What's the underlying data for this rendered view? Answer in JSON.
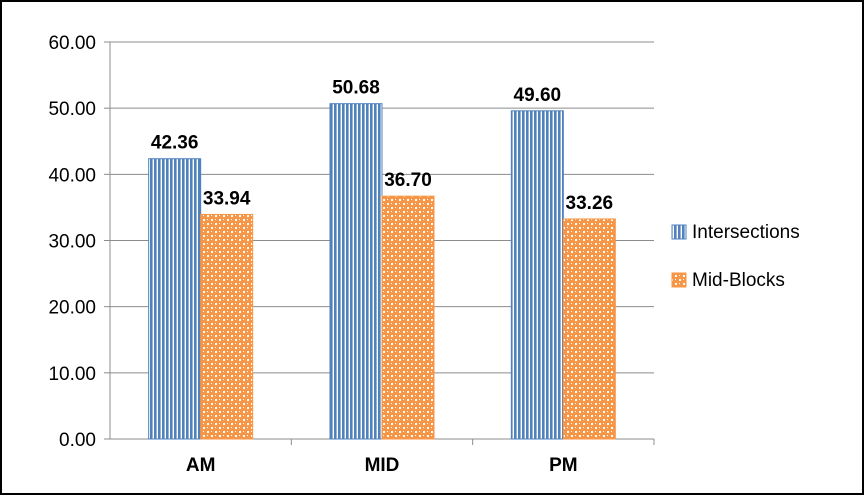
{
  "chart_data": {
    "type": "bar",
    "categories": [
      "AM",
      "MID",
      "PM"
    ],
    "series": [
      {
        "name": "Intersections",
        "values": [
          42.36,
          50.68,
          49.6
        ],
        "labels": [
          "42.36",
          "50.68",
          "49.60"
        ],
        "color": "#4f81bd",
        "pattern": "vertical-stripes"
      },
      {
        "name": "Mid-Blocks",
        "values": [
          33.94,
          36.7,
          33.26
        ],
        "labels": [
          "33.94",
          "36.70",
          "33.26"
        ],
        "color": "#f79646",
        "pattern": "weave"
      }
    ],
    "ylim": [
      0,
      60
    ],
    "yticks": [
      "0.00",
      "10.00",
      "20.00",
      "30.00",
      "40.00",
      "50.00",
      "60.00"
    ],
    "grid": true,
    "legend": "right",
    "xlabel": "",
    "ylabel": ""
  }
}
